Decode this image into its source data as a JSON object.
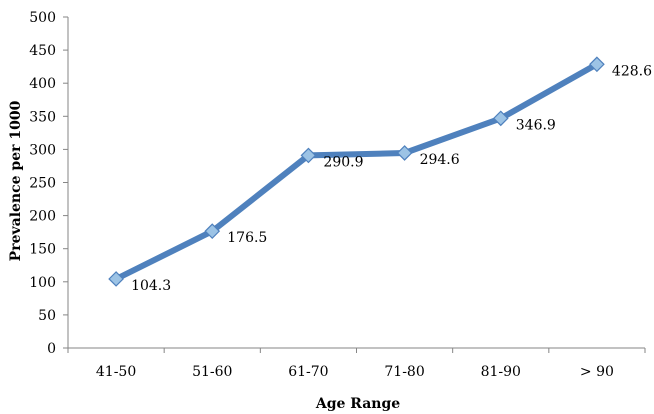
{
  "chart_data": {
    "type": "line",
    "title": "",
    "xlabel": "Age Range",
    "ylabel": "Prevalence per 1000",
    "categories": [
      "41-50",
      "51-60",
      "61-70",
      "71-80",
      "81-90",
      "> 90"
    ],
    "series": [
      {
        "values": [
          104.3,
          176.5,
          290.9,
          294.6,
          346.9,
          428.6
        ]
      }
    ],
    "data_labels": [
      "104.3",
      "176.5",
      "290.9",
      "294.6",
      "346.9",
      "428.6"
    ],
    "y_ticks": [
      0,
      50,
      100,
      150,
      200,
      250,
      300,
      350,
      400,
      450,
      500
    ],
    "ylim": [
      0,
      500
    ],
    "grid": false,
    "legend": "none",
    "marker": "diamond",
    "colors": {
      "line": "#4f81bd",
      "marker_fill": "#9cc3e5",
      "marker_stroke": "#4f81bd",
      "axis": "#868686"
    }
  }
}
